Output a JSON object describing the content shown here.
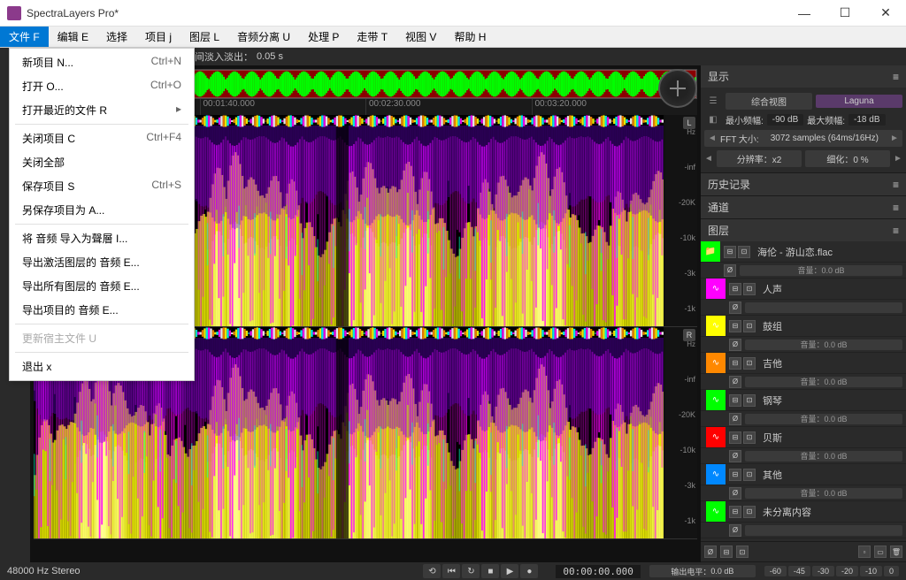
{
  "titlebar": {
    "app_name": "SpectraLayers Pro*",
    "icon_color": "#8b3a8b"
  },
  "window_controls": {
    "min": "—",
    "max": "☐",
    "close": "✕"
  },
  "menubar": [
    {
      "label": "文件 F",
      "active": true
    },
    {
      "label": "编辑 E"
    },
    {
      "label": "选择"
    },
    {
      "label": "项目 j"
    },
    {
      "label": "图层 L"
    },
    {
      "label": "音频分离 U"
    },
    {
      "label": "处理 P"
    },
    {
      "label": "走带 T"
    },
    {
      "label": "视图 V"
    },
    {
      "label": "帮助 H"
    }
  ],
  "file_menu": [
    {
      "label": "新项目 N...",
      "shortcut": "Ctrl+N"
    },
    {
      "label": "打开 O...",
      "shortcut": "Ctrl+O"
    },
    {
      "label": "打开最近的文件 R",
      "arrow": true
    },
    {
      "sep": true
    },
    {
      "label": "关闭项目 C",
      "shortcut": "Ctrl+F4"
    },
    {
      "label": "关闭全部"
    },
    {
      "label": "保存项目 S",
      "shortcut": "Ctrl+S"
    },
    {
      "label": "另保存项目为 A..."
    },
    {
      "sep": true
    },
    {
      "label": "将 音频 导入为聲層 I..."
    },
    {
      "label": "导出激活图层的 音频 E..."
    },
    {
      "label": "导出所有图层的 音频 E..."
    },
    {
      "label": "导出项目的 音频 E..."
    },
    {
      "sep": true
    },
    {
      "label": "更新宿主文件 U",
      "disabled": true
    },
    {
      "sep": true
    },
    {
      "label": "退出 x"
    }
  ],
  "toolbar": {
    "fade_label": "间淡入淡出：",
    "fade_value": "0.05 s"
  },
  "timeline": {
    "marks": [
      "",
      "00:01:40.000",
      "00:02:30.000",
      "00:03:20.000"
    ],
    "overview_color": "#00ff00",
    "overview_bg": "#8b0000"
  },
  "spectrogram": {
    "freq_labels": [
      "-inf",
      "-20K",
      "-10k",
      "-3k",
      "-1k"
    ],
    "hz_label": "Hz",
    "channel_left": "L",
    "channel_right": "R",
    "colors": {
      "bg": "#000000",
      "low": "#1a0033",
      "mid1": "#6600cc",
      "mid2": "#ff00ff",
      "high1": "#ffff00",
      "high2": "#ffffff",
      "cyan": "#00ffcc"
    },
    "waveform_colors": [
      "#ff8800",
      "#ffff00",
      "#00ffff",
      "#ff00ff",
      "#ffffff"
    ]
  },
  "right_panel": {
    "display": {
      "title": "显示",
      "mode_label": "综合视图",
      "colormap": "Laguna",
      "min_freq_label": "最小频幅:",
      "min_freq_val": "-90 dB",
      "max_freq_label": "最大频幅:",
      "max_freq_val": "-18 dB",
      "fft_label": "FFT 大小:",
      "fft_val": "3072 samples (64ms/16Hz)",
      "res_label": "分辨率：",
      "res_val": "x2",
      "refine_label": "细化：",
      "refine_val": "0 %"
    },
    "history": {
      "title": "历史记录"
    },
    "channel": {
      "title": "通道"
    },
    "layers": {
      "title": "图层",
      "vol_prefix": "音量：",
      "items": [
        {
          "color": "#00ff00",
          "name": "海伦 - 游山恋.flac",
          "vol": "0.0 dB",
          "folder": true
        },
        {
          "color": "#ff00ff",
          "name": "人声",
          "vol": ""
        },
        {
          "color": "#ffff00",
          "name": "鼓组",
          "vol": "0.0 dB"
        },
        {
          "color": "#ff8800",
          "name": "吉他",
          "vol": "0.0 dB"
        },
        {
          "color": "#00ff00",
          "name": "钢琴",
          "vol": "0.0 dB"
        },
        {
          "color": "#ff0000",
          "name": "贝斯",
          "vol": "0.0 dB"
        },
        {
          "color": "#0088ff",
          "name": "其他",
          "vol": "0.0 dB"
        },
        {
          "color": "#00ff00",
          "name": "未分离内容",
          "vol": ""
        }
      ]
    }
  },
  "statusbar": {
    "info": "48000 Hz Stereo",
    "time": "00:00:00.000",
    "output_label": "输出电平：",
    "output_val": "0.0 dB",
    "zoom_levels": [
      "-60",
      "-45",
      "-30",
      "-20",
      "-10",
      "0"
    ]
  }
}
